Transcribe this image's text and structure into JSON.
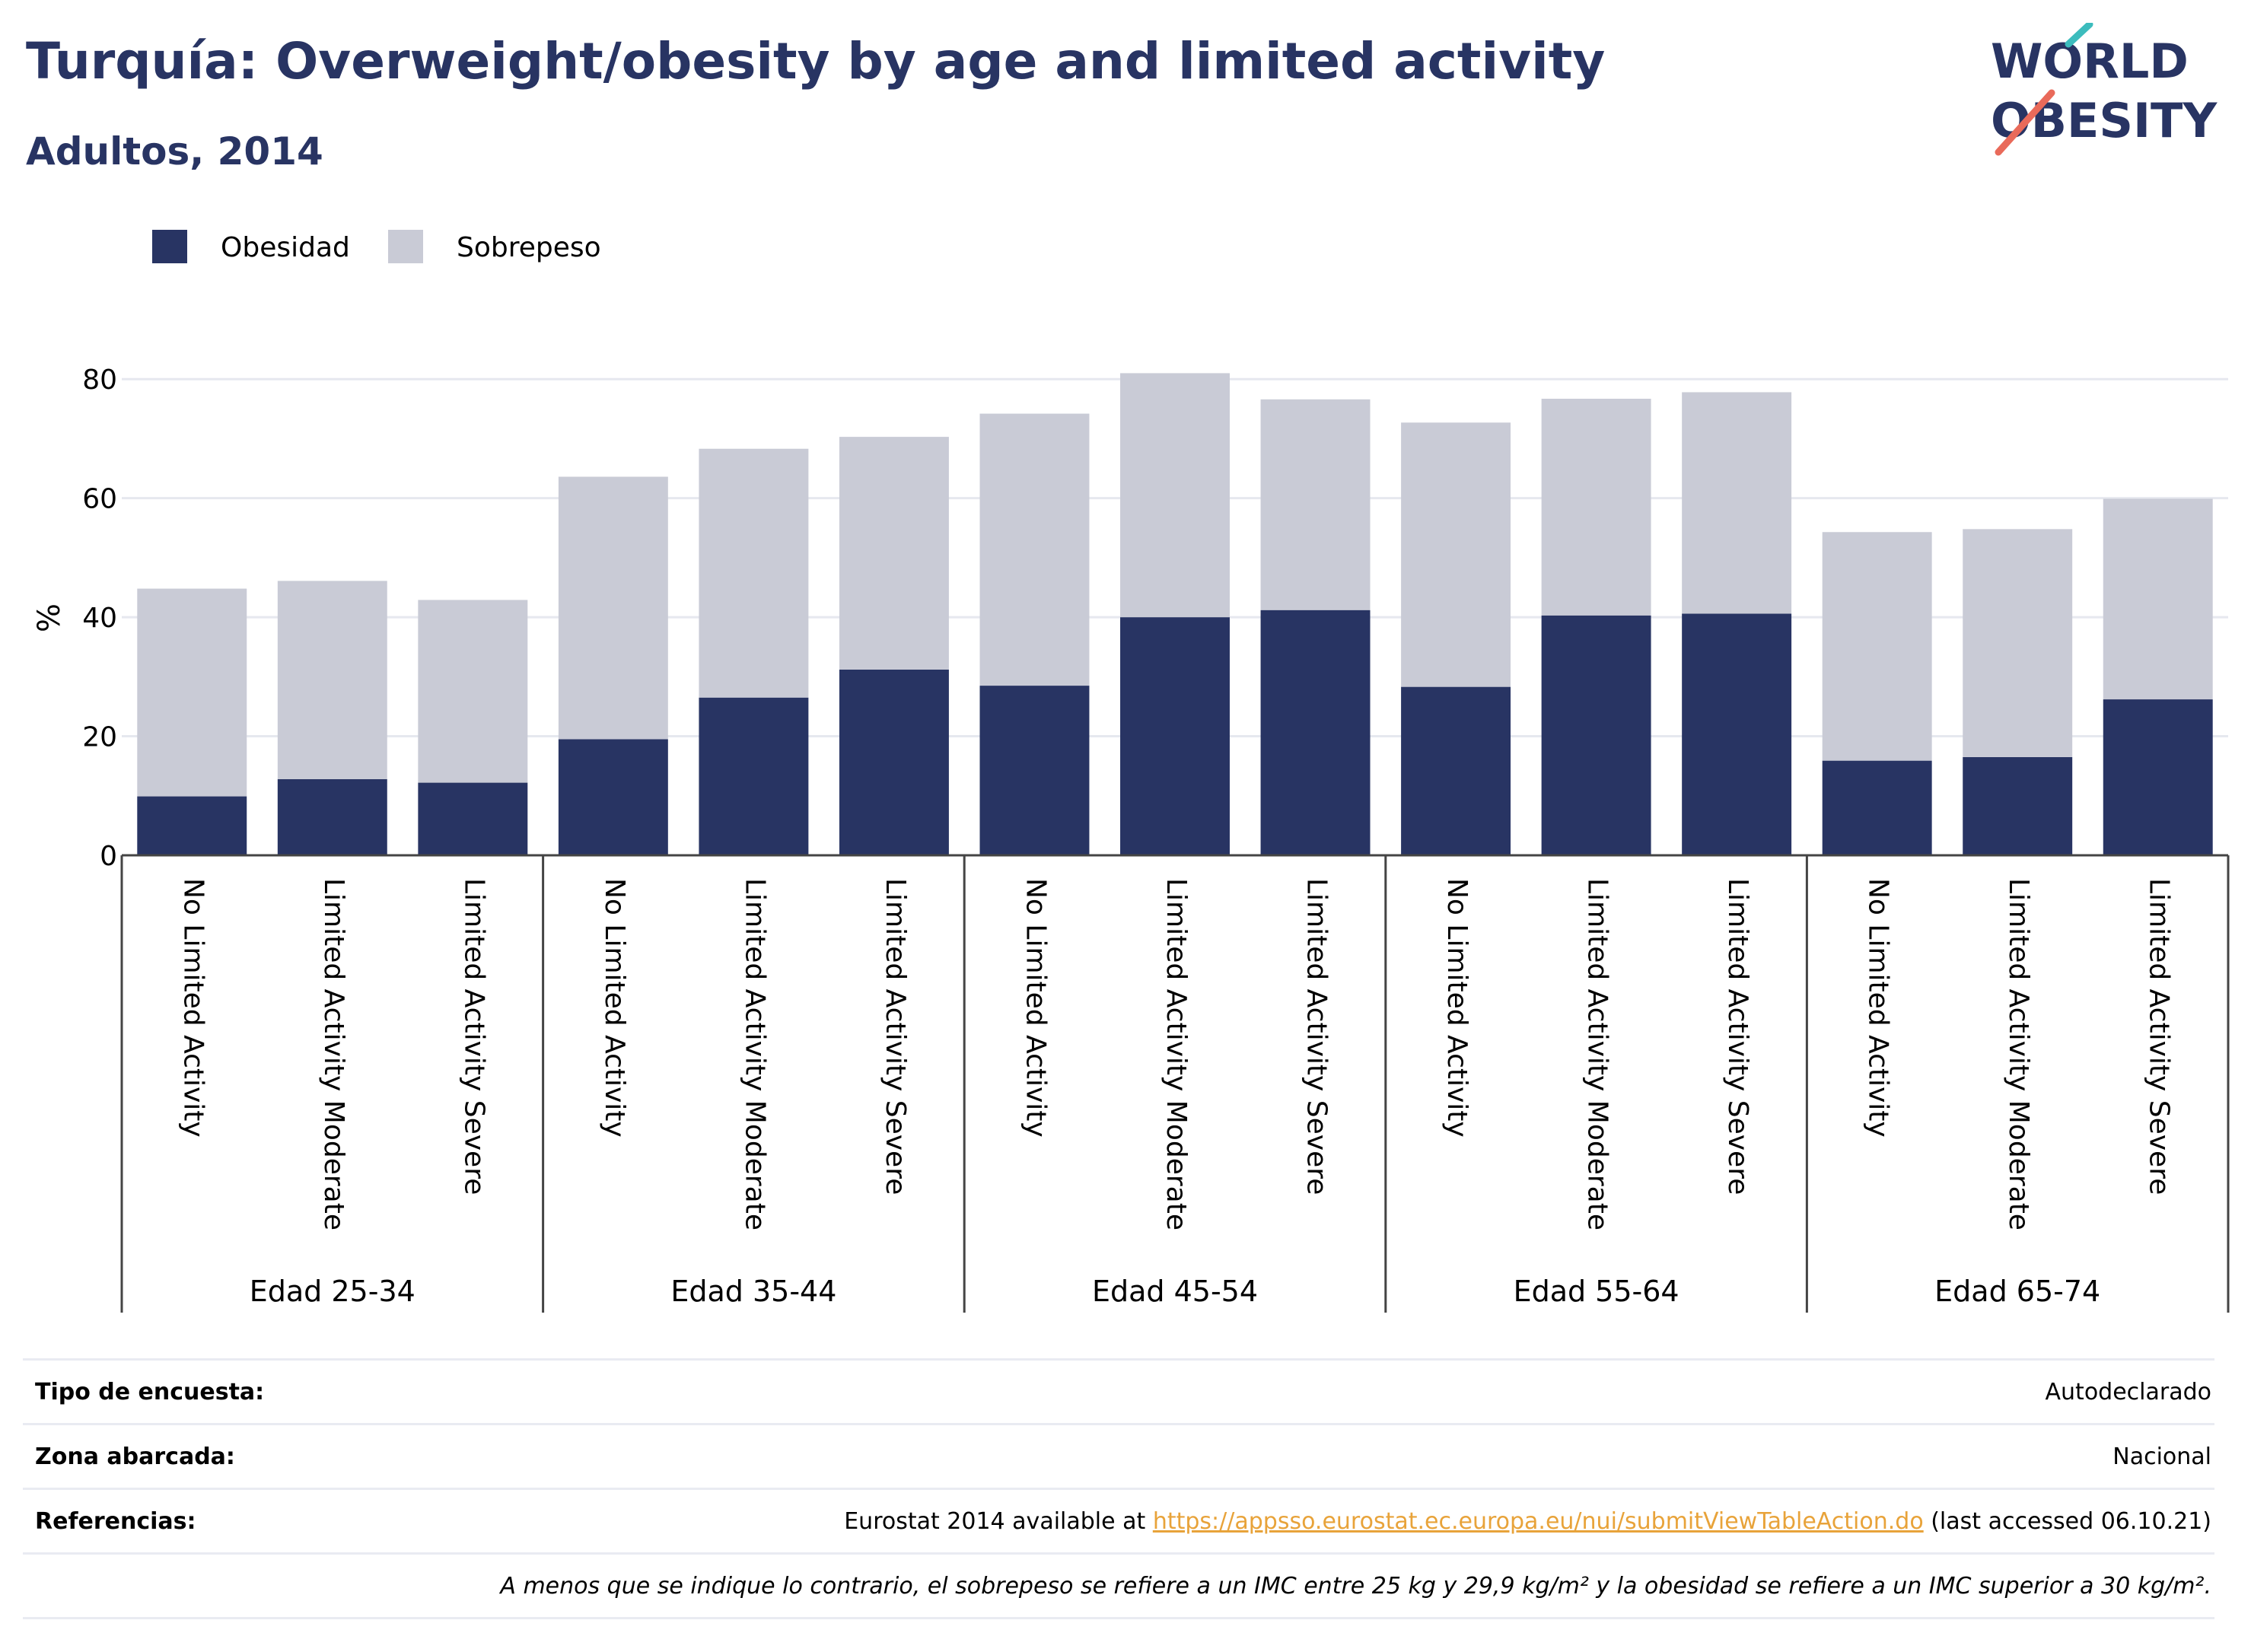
{
  "title": "Turquía: Overweight/obesity by age and limited activity",
  "subtitle": "Adultos, 2014",
  "logo": {
    "line1": "WORLD",
    "line2": "OBESITY"
  },
  "colors": {
    "obesity": "#283463",
    "overweight": "#c9cbd6",
    "title": "#283463",
    "accent_teal": "#3cbcbd",
    "accent_red": "#e96a5a"
  },
  "chart_data": {
    "type": "bar",
    "stacked": true,
    "ylabel": "%",
    "ylim": [
      0,
      90
    ],
    "yticks": [
      0,
      20,
      40,
      60,
      80
    ],
    "grid": true,
    "legend_position": "top-left",
    "groups": [
      "Edad 25-34",
      "Edad 35-44",
      "Edad 45-54",
      "Edad 55-64",
      "Edad 65-74"
    ],
    "subcategories": [
      "No Limited Activity",
      "Limited Activity Moderate",
      "Limited Activity Severe"
    ],
    "series": [
      {
        "name": "Obesidad",
        "color": "#283463",
        "values": [
          9.9,
          12.8,
          12.2,
          19.5,
          26.5,
          31.2,
          28.5,
          40.0,
          41.2,
          28.3,
          40.3,
          40.6,
          15.9,
          16.5,
          26.2
        ]
      },
      {
        "name": "Sobrepeso",
        "color": "#c9cbd6",
        "values": [
          34.9,
          33.3,
          30.7,
          44.1,
          41.8,
          39.1,
          45.7,
          41.0,
          35.4,
          44.4,
          36.4,
          37.2,
          38.4,
          38.3,
          33.7
        ]
      }
    ]
  },
  "meta": {
    "survey_type_label": "Tipo de encuesta:",
    "survey_type_value": "Autodeclarado",
    "coverage_label": "Zona abarcada:",
    "coverage_value": "Nacional",
    "references_label": "Referencias:",
    "references_prefix": "Eurostat 2014 available at ",
    "references_link": "https://appsso.eurostat.ec.europa.eu/nui/submitViewTableAction.do",
    "references_suffix": " (last accessed 06.10.21)",
    "note": "A menos que se indique lo contrario, el sobrepeso se refiere a un IMC entre 25 kg y 29,9 kg/m² y la obesidad se refiere a un IMC superior a 30 kg/m²."
  }
}
